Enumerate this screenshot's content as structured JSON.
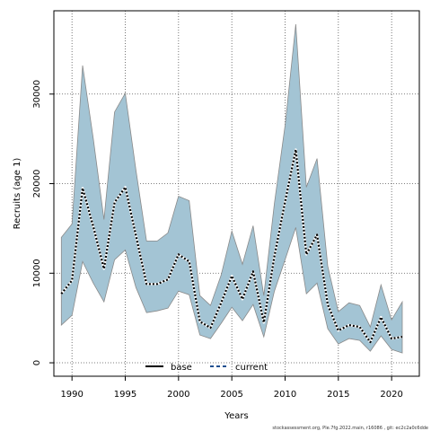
{
  "chart_data": {
    "type": "area",
    "xlabel": "Years",
    "ylabel": "Recruits (age 1)",
    "xlim": [
      1988.3,
      2022.6
    ],
    "ylim": [
      -1500,
      39300
    ],
    "x_ticks": [
      1990,
      1995,
      2000,
      2005,
      2010,
      2015,
      2020
    ],
    "y_ticks": [
      0,
      10000,
      20000,
      30000
    ],
    "grid": true,
    "legend_position": "bottom-center",
    "band_color": "#a3c4d4",
    "band_edge_color": "#8a8a8a",
    "x": [
      1989,
      1990,
      1991,
      1992,
      1993,
      1994,
      1995,
      1996,
      1997,
      1998,
      1999,
      2000,
      2001,
      2002,
      2003,
      2004,
      2005,
      2006,
      2007,
      2008,
      2009,
      2010,
      2011,
      2012,
      2013,
      2014,
      2015,
      2016,
      2017,
      2018,
      2019,
      2020,
      2021
    ],
    "band_upper": [
      14000,
      15500,
      33200,
      25000,
      16000,
      28000,
      30100,
      21500,
      13600,
      13600,
      14500,
      18600,
      18100,
      7500,
      6400,
      9800,
      14700,
      11000,
      15300,
      7500,
      17800,
      26500,
      37800,
      19600,
      22800,
      10800,
      5700,
      6700,
      6400,
      4000,
      8700,
      4800,
      6800
    ],
    "band_lower": [
      4200,
      5300,
      11300,
      8900,
      6800,
      11500,
      12600,
      8400,
      5600,
      5800,
      6100,
      8000,
      7600,
      3100,
      2700,
      4400,
      6200,
      4700,
      6500,
      2900,
      8000,
      11500,
      15100,
      7700,
      8900,
      3800,
      2100,
      2700,
      2500,
      1300,
      3000,
      1500,
      1100
    ],
    "series": [
      {
        "name": "current",
        "color": "#000000",
        "dash": "dotted",
        "values": [
          7700,
          9200,
          19500,
          15200,
          10500,
          17900,
          19600,
          14200,
          8800,
          8800,
          9300,
          12100,
          11300,
          4600,
          3900,
          6700,
          9700,
          7100,
          10200,
          4500,
          11900,
          18000,
          23800,
          12100,
          14300,
          6500,
          3600,
          4200,
          4000,
          2300,
          5100,
          2700,
          2900
        ]
      }
    ],
    "legend": [
      {
        "name": "base",
        "line_style": "solid",
        "color": "#000000"
      },
      {
        "name": "current",
        "line_style": "dashed",
        "color": "#1f4f8f"
      }
    ],
    "footer": "stockassessment.org, Ple.7fg.2022.main, r16086 , git: ec2c2a0c6dde"
  }
}
